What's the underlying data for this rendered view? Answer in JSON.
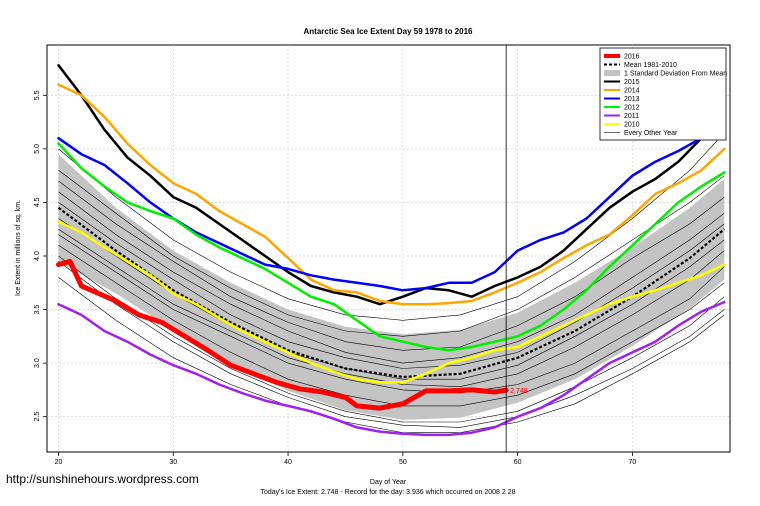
{
  "chart_data": {
    "type": "line",
    "title": "Antarctic Sea Ice Extent Day 59 1978 to 2016",
    "xlabel": "Day of Year",
    "ylabel": "Ice Extent in millions of sq. km.",
    "xlim": [
      19,
      78.5
    ],
    "ylim": [
      2.17,
      5.97
    ],
    "xticks": [
      20,
      30,
      40,
      50,
      60,
      70
    ],
    "yticks": [
      2.5,
      3.0,
      3.5,
      4.0,
      4.5,
      5.0,
      5.5
    ],
    "xtick_labels": [
      "20",
      "30",
      "40",
      "50",
      "60",
      "70"
    ],
    "ytick_labels": [
      "2.5",
      "3.0",
      "3.5",
      "4.0",
      "4.5",
      "5.0",
      "5.5"
    ],
    "grid": true,
    "vline_day": 59,
    "end_label": "2.748",
    "legend_position": "top-right",
    "legend": [
      {
        "label": "2016",
        "color": "#ff0000",
        "style": "thick"
      },
      {
        "label": "Mean 1981-2010",
        "color": "#000000",
        "style": "dashed"
      },
      {
        "label": "1 Standard Deviation From Mean",
        "color": "#bbbbbb",
        "style": "band"
      },
      {
        "label": "2015",
        "color": "#000000",
        "style": "solid"
      },
      {
        "label": "2014",
        "color": "#ffa500",
        "style": "solid"
      },
      {
        "label": "2013",
        "color": "#0000ff",
        "style": "solid"
      },
      {
        "label": "2012",
        "color": "#00ee00",
        "style": "solid"
      },
      {
        "label": "2011",
        "color": "#a020f0",
        "style": "solid"
      },
      {
        "label": "2010",
        "color": "#ffff00",
        "style": "solid"
      },
      {
        "label": "Every Other Year",
        "color": "#000000",
        "style": "thin"
      }
    ],
    "mean": {
      "x": [
        20,
        25,
        30,
        35,
        40,
        45,
        50,
        55,
        60,
        65,
        70,
        75,
        78
      ],
      "y": [
        4.45,
        4.05,
        3.68,
        3.38,
        3.12,
        2.95,
        2.87,
        2.9,
        3.05,
        3.3,
        3.62,
        3.98,
        4.25
      ]
    },
    "sd_band": {
      "x": [
        20,
        25,
        30,
        35,
        40,
        45,
        50,
        55,
        60,
        65,
        70,
        75,
        78
      ],
      "upper": [
        4.95,
        4.45,
        4.05,
        3.75,
        3.5,
        3.34,
        3.27,
        3.31,
        3.47,
        3.75,
        4.08,
        4.45,
        4.72
      ],
      "lower": [
        3.95,
        3.65,
        3.31,
        3.01,
        2.74,
        2.56,
        2.47,
        2.49,
        2.63,
        2.85,
        3.16,
        3.51,
        3.78
      ]
    },
    "series": [
      {
        "name": "2016",
        "color": "#ff0000",
        "width": 5,
        "x": [
          20,
          21,
          22,
          25,
          27,
          29,
          31,
          33,
          35,
          37,
          39,
          41,
          43,
          45,
          46,
          48,
          50,
          51,
          52,
          54,
          56,
          58,
          59
        ],
        "y": [
          3.92,
          3.95,
          3.72,
          3.58,
          3.45,
          3.38,
          3.25,
          3.12,
          2.98,
          2.9,
          2.82,
          2.76,
          2.73,
          2.68,
          2.6,
          2.58,
          2.62,
          2.68,
          2.74,
          2.74,
          2.75,
          2.73,
          2.748
        ]
      },
      {
        "name": "2015",
        "color": "#000000",
        "width": 2.5,
        "x": [
          20,
          22,
          24,
          26,
          28,
          30,
          32,
          34,
          36,
          38,
          40,
          42,
          44,
          46,
          48,
          50,
          52,
          54,
          56,
          58,
          60,
          62,
          64,
          66,
          68,
          70,
          72,
          74,
          76,
          78
        ],
        "y": [
          5.78,
          5.5,
          5.18,
          4.92,
          4.75,
          4.55,
          4.45,
          4.3,
          4.15,
          4.0,
          3.85,
          3.72,
          3.66,
          3.62,
          3.55,
          3.62,
          3.7,
          3.68,
          3.62,
          3.72,
          3.8,
          3.9,
          4.05,
          4.25,
          4.45,
          4.6,
          4.72,
          4.88,
          5.1,
          5.22
        ]
      },
      {
        "name": "2014",
        "color": "#ffa500",
        "width": 2.5,
        "x": [
          20,
          22,
          24,
          26,
          28,
          30,
          32,
          34,
          36,
          38,
          40,
          42,
          44,
          46,
          48,
          50,
          52,
          54,
          56,
          58,
          60,
          62,
          64,
          66,
          68,
          70,
          72,
          74,
          76,
          78
        ],
        "y": [
          5.6,
          5.5,
          5.3,
          5.05,
          4.85,
          4.68,
          4.58,
          4.42,
          4.3,
          4.18,
          3.98,
          3.78,
          3.68,
          3.66,
          3.58,
          3.55,
          3.55,
          3.56,
          3.58,
          3.66,
          3.75,
          3.85,
          3.98,
          4.1,
          4.2,
          4.38,
          4.58,
          4.68,
          4.8,
          5.0
        ]
      },
      {
        "name": "2013",
        "color": "#0000ff",
        "width": 2.5,
        "x": [
          20,
          22,
          24,
          26,
          28,
          30,
          32,
          34,
          36,
          38,
          40,
          42,
          44,
          46,
          48,
          50,
          52,
          54,
          56,
          58,
          60,
          62,
          64,
          66,
          68,
          70,
          72,
          74,
          76,
          78
        ],
        "y": [
          5.1,
          4.95,
          4.85,
          4.68,
          4.5,
          4.35,
          4.22,
          4.12,
          4.02,
          3.92,
          3.88,
          3.82,
          3.78,
          3.75,
          3.72,
          3.68,
          3.7,
          3.75,
          3.75,
          3.85,
          4.05,
          4.15,
          4.22,
          4.35,
          4.55,
          4.75,
          4.88,
          4.98,
          5.1,
          5.22
        ]
      },
      {
        "name": "2012",
        "color": "#00ee00",
        "width": 2.5,
        "x": [
          20,
          22,
          24,
          26,
          28,
          30,
          32,
          34,
          36,
          38,
          40,
          42,
          44,
          46,
          48,
          50,
          52,
          54,
          56,
          58,
          60,
          62,
          64,
          66,
          68,
          70,
          72,
          74,
          76,
          78
        ],
        "y": [
          5.05,
          4.82,
          4.65,
          4.5,
          4.42,
          4.35,
          4.2,
          4.08,
          3.98,
          3.88,
          3.75,
          3.62,
          3.55,
          3.4,
          3.25,
          3.2,
          3.15,
          3.12,
          3.15,
          3.2,
          3.25,
          3.35,
          3.5,
          3.68,
          3.9,
          4.1,
          4.3,
          4.5,
          4.65,
          4.78
        ]
      },
      {
        "name": "2011",
        "color": "#a020f0",
        "width": 2.5,
        "x": [
          20,
          22,
          24,
          26,
          28,
          30,
          32,
          34,
          36,
          38,
          40,
          42,
          44,
          46,
          48,
          50,
          52,
          54,
          56,
          58,
          60,
          62,
          64,
          66,
          68,
          70,
          72,
          74,
          76,
          78
        ],
        "y": [
          3.55,
          3.45,
          3.3,
          3.2,
          3.08,
          2.98,
          2.9,
          2.8,
          2.72,
          2.65,
          2.6,
          2.55,
          2.48,
          2.4,
          2.36,
          2.34,
          2.33,
          2.33,
          2.35,
          2.4,
          2.5,
          2.58,
          2.7,
          2.85,
          3.0,
          3.1,
          3.2,
          3.35,
          3.48,
          3.57
        ]
      },
      {
        "name": "2010",
        "color": "#ffff00",
        "width": 2.5,
        "x": [
          20,
          22,
          24,
          26,
          28,
          30,
          32,
          34,
          36,
          38,
          40,
          42,
          44,
          46,
          48,
          50,
          52,
          54,
          56,
          58,
          60,
          62,
          64,
          66,
          68,
          70,
          72,
          74,
          76,
          78
        ],
        "y": [
          4.32,
          4.22,
          4.08,
          3.95,
          3.82,
          3.65,
          3.55,
          3.42,
          3.3,
          3.2,
          3.1,
          3.0,
          2.92,
          2.85,
          2.82,
          2.82,
          2.9,
          3.0,
          3.05,
          3.12,
          3.15,
          3.25,
          3.35,
          3.45,
          3.55,
          3.62,
          3.68,
          3.75,
          3.82,
          3.92
        ]
      }
    ],
    "other_years": [
      {
        "x": [
          20,
          25,
          30,
          35,
          40,
          45,
          50,
          55,
          60,
          65,
          70,
          75,
          78
        ],
        "y": [
          4.2,
          3.85,
          3.5,
          3.25,
          3.0,
          2.85,
          2.75,
          2.72,
          2.8,
          3.0,
          3.3,
          3.6,
          3.9
        ]
      },
      {
        "x": [
          20,
          25,
          30,
          35,
          40,
          45,
          50,
          55,
          60,
          65,
          70,
          75,
          78
        ],
        "y": [
          4.6,
          4.2,
          3.85,
          3.55,
          3.3,
          3.1,
          3.0,
          3.05,
          3.2,
          3.45,
          3.8,
          4.15,
          4.4
        ]
      },
      {
        "x": [
          20,
          25,
          30,
          35,
          40,
          45,
          50,
          55,
          60,
          65,
          70,
          75,
          78
        ],
        "y": [
          4.0,
          3.6,
          3.25,
          2.95,
          2.72,
          2.55,
          2.45,
          2.45,
          2.55,
          2.78,
          3.05,
          3.35,
          3.62
        ]
      },
      {
        "x": [
          20,
          25,
          30,
          35,
          40,
          45,
          50,
          55,
          60,
          65,
          70,
          75,
          78
        ],
        "y": [
          4.8,
          4.4,
          4.0,
          3.7,
          3.45,
          3.3,
          3.25,
          3.3,
          3.5,
          3.8,
          4.15,
          4.5,
          4.75
        ]
      },
      {
        "x": [
          20,
          25,
          30,
          35,
          40,
          45,
          50,
          55,
          60,
          65,
          70,
          75,
          78
        ],
        "y": [
          3.8,
          3.4,
          3.05,
          2.8,
          2.6,
          2.45,
          2.35,
          2.35,
          2.45,
          2.62,
          2.9,
          3.2,
          3.45
        ]
      },
      {
        "x": [
          20,
          25,
          30,
          35,
          40,
          45,
          50,
          55,
          60,
          65,
          70,
          75,
          78
        ],
        "y": [
          4.35,
          4.0,
          3.65,
          3.35,
          3.1,
          2.95,
          2.85,
          2.85,
          2.98,
          3.25,
          3.55,
          3.9,
          4.15
        ]
      },
      {
        "x": [
          20,
          25,
          30,
          35,
          40,
          45,
          50,
          55,
          60,
          65,
          70,
          75,
          78
        ],
        "y": [
          5.0,
          4.55,
          4.15,
          3.85,
          3.6,
          3.45,
          3.4,
          3.45,
          3.62,
          3.95,
          4.35,
          4.8,
          5.15
        ]
      },
      {
        "x": [
          20,
          25,
          30,
          35,
          40,
          45,
          50,
          55,
          60,
          65,
          70,
          75,
          78
        ],
        "y": [
          4.1,
          3.75,
          3.4,
          3.1,
          2.85,
          2.7,
          2.6,
          2.6,
          2.7,
          2.9,
          3.2,
          3.5,
          3.75
        ]
      },
      {
        "x": [
          20,
          25,
          30,
          35,
          40,
          45,
          50,
          55,
          60,
          65,
          70,
          75,
          78
        ],
        "y": [
          4.7,
          4.3,
          3.95,
          3.62,
          3.38,
          3.2,
          3.12,
          3.15,
          3.35,
          3.62,
          3.98,
          4.3,
          4.55
        ]
      },
      {
        "x": [
          20,
          25,
          30,
          35,
          40,
          45,
          50,
          55,
          60,
          65,
          70,
          75,
          78
        ],
        "y": [
          3.95,
          3.55,
          3.2,
          2.9,
          2.68,
          2.5,
          2.42,
          2.4,
          2.5,
          2.7,
          2.95,
          3.25,
          3.5
        ]
      },
      {
        "x": [
          20,
          25,
          30,
          35,
          40,
          45,
          50,
          55,
          60,
          65,
          70,
          75,
          78
        ],
        "y": [
          4.5,
          4.12,
          3.78,
          3.45,
          3.2,
          3.05,
          2.95,
          2.98,
          3.1,
          3.38,
          3.7,
          4.05,
          4.3
        ]
      },
      {
        "x": [
          20,
          25,
          30,
          35,
          40,
          45,
          50,
          55,
          60,
          65,
          70,
          75,
          78
        ],
        "y": [
          4.25,
          3.9,
          3.55,
          3.3,
          3.05,
          2.9,
          2.8,
          2.78,
          2.9,
          3.15,
          3.45,
          3.78,
          4.05
        ]
      }
    ]
  },
  "footer": {
    "watermark": "http://sunshinehours.wordpress.com",
    "caption": "Today's Ice Extent: 2.748  -  Record for the day: 3.936 which occurred on 2008 2 28"
  }
}
